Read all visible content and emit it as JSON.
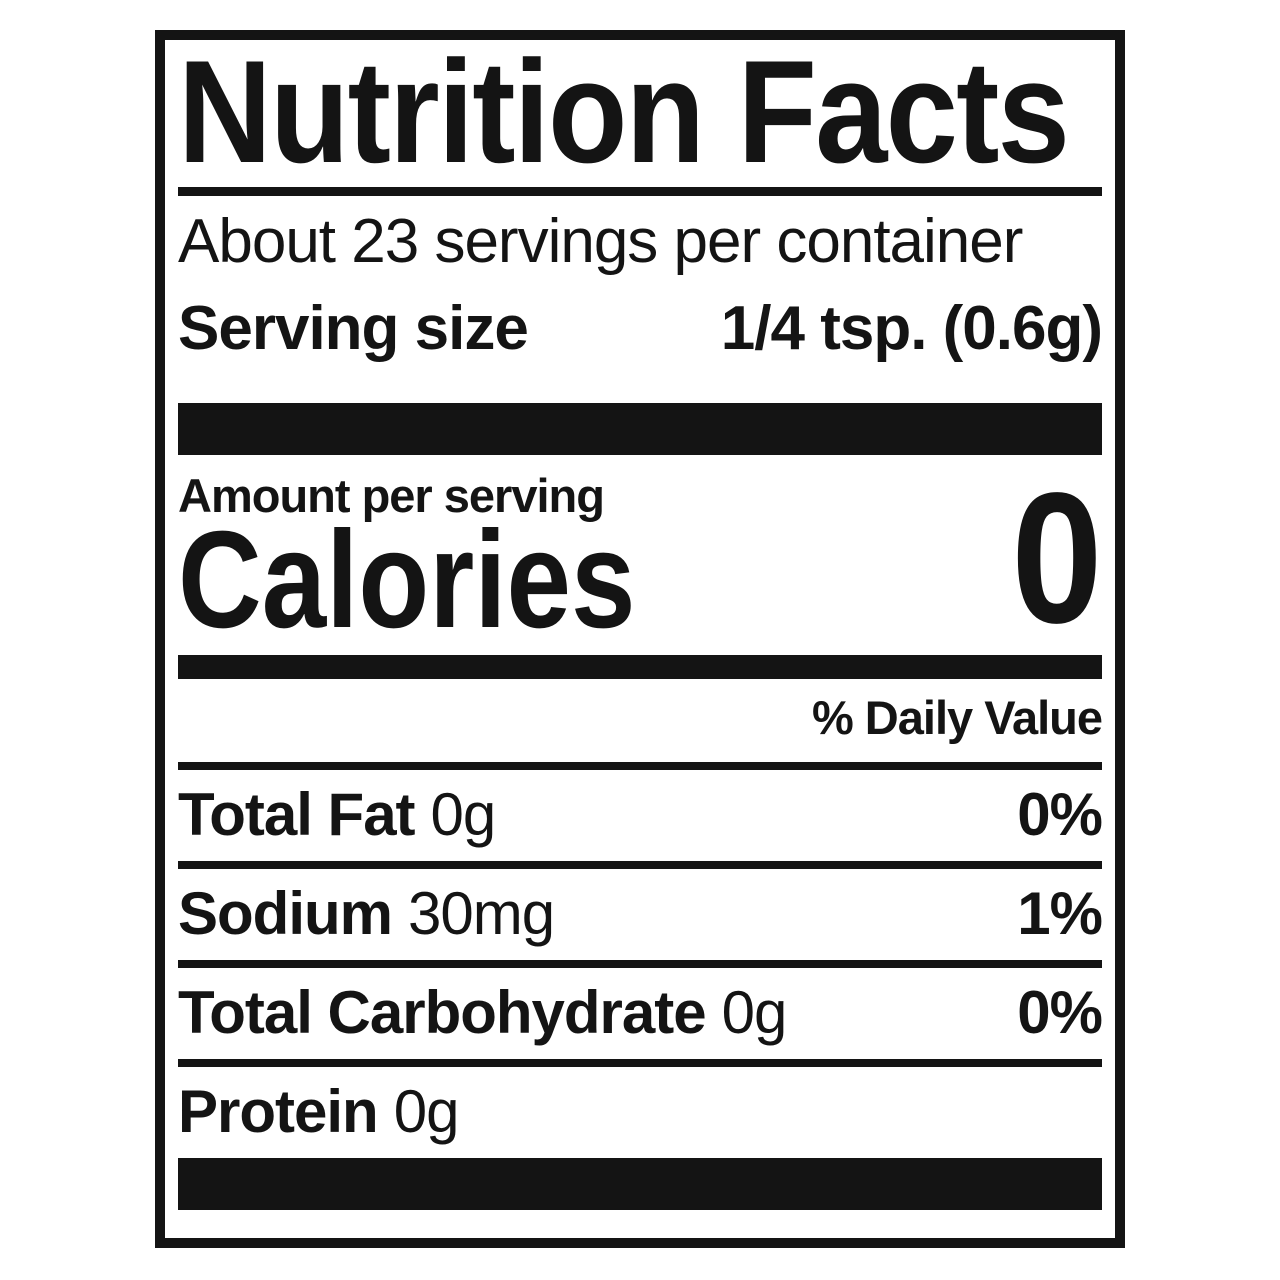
{
  "label": {
    "title": "Nutrition Facts",
    "servings_per_container": "About 23 servings per container",
    "serving_size": {
      "label": "Serving size",
      "value": "1/4 tsp. (0.6g)"
    },
    "amount_per_serving": "Amount per serving",
    "calories": {
      "label": "Calories",
      "value": "0"
    },
    "daily_value_header": "% Daily Value",
    "nutrients": [
      {
        "name": "Total Fat",
        "amount": "0g",
        "daily_value": "0%"
      },
      {
        "name": "Sodium",
        "amount": "30mg",
        "daily_value": "1%"
      },
      {
        "name": "Total Carbohydrate",
        "amount": "0g",
        "daily_value": "0%"
      },
      {
        "name": "Protein",
        "amount": "0g",
        "daily_value": ""
      }
    ],
    "colors": {
      "ink": "#141414",
      "paper": "#ffffff"
    }
  }
}
